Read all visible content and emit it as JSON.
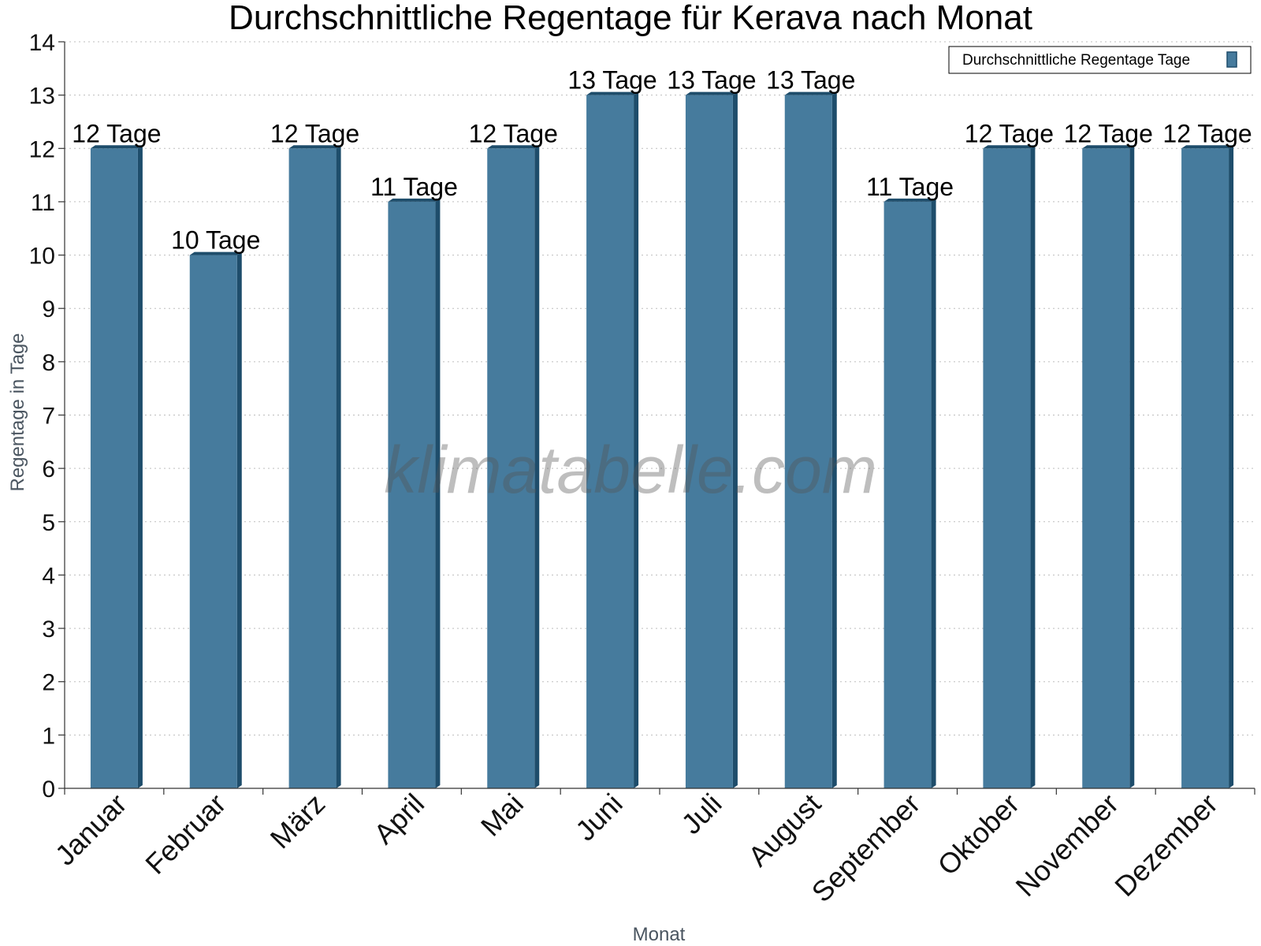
{
  "chart_data": {
    "type": "bar",
    "title": "Durchschnittliche Regentage für Kerava nach Monat",
    "xlabel": "Monat",
    "ylabel": "Regentage in Tage",
    "ylim": [
      0,
      14
    ],
    "yticks": [
      0,
      1,
      2,
      3,
      4,
      5,
      6,
      7,
      8,
      9,
      10,
      11,
      12,
      13,
      14
    ],
    "categories": [
      "Januar",
      "Februar",
      "März",
      "April",
      "Mai",
      "Juni",
      "Juli",
      "August",
      "September",
      "Oktober",
      "November",
      "Dezember"
    ],
    "series": [
      {
        "name": "Durchschnittliche Regentage Tage",
        "values": [
          12,
          10,
          12,
          11,
          12,
          13,
          13,
          13,
          11,
          12,
          12,
          12
        ],
        "data_labels": [
          "12 Tage",
          "10 Tage",
          "12 Tage",
          "11 Tage",
          "12 Tage",
          "13 Tage",
          "13 Tage",
          "13 Tage",
          "11 Tage",
          "12 Tage",
          "12 Tage",
          "12 Tage"
        ],
        "color": "#467b9d",
        "side_color": "#1e4d6b",
        "top_color": "#1e4d6b"
      }
    ],
    "grid": true,
    "legend_position": "top-right",
    "watermark": "klimatabelle.com"
  }
}
